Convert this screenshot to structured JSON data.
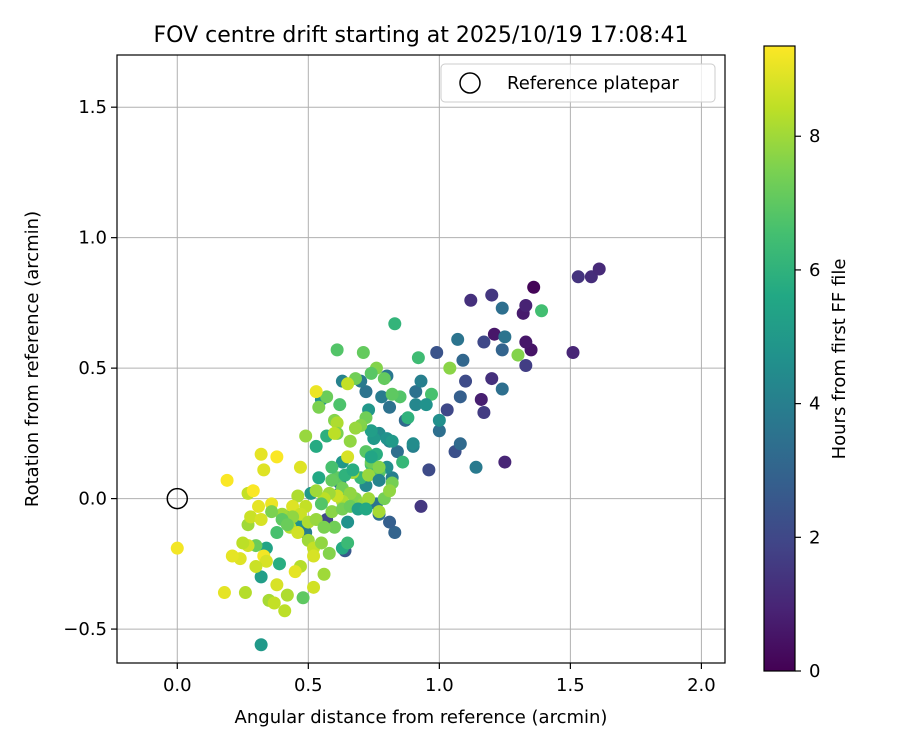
{
  "chart_data": {
    "type": "scatter",
    "title": "FOV centre drift starting at 2025/10/19 17:08:41",
    "xlabel": "Angular distance from reference (arcmin)",
    "ylabel": "Rotation from reference (arcmin)",
    "xlim": [
      -0.23,
      2.09
    ],
    "ylim": [
      -0.63,
      1.7
    ],
    "grid": true,
    "xticks": [
      {
        "value": 0.0,
        "label": "0.0"
      },
      {
        "value": 0.5,
        "label": "0.5"
      },
      {
        "value": 1.0,
        "label": "1.0"
      },
      {
        "value": 1.5,
        "label": "1.5"
      },
      {
        "value": 2.0,
        "label": "2.0"
      }
    ],
    "yticks": [
      {
        "value": -0.5,
        "label": "−0.5"
      },
      {
        "value": 0.0,
        "label": "0.0"
      },
      {
        "value": 0.5,
        "label": "0.5"
      },
      {
        "value": 1.0,
        "label": "1.0"
      },
      {
        "value": 1.5,
        "label": "1.5"
      }
    ],
    "legend": {
      "label": "Reference platepar",
      "location": "upper right"
    },
    "reference_point": {
      "x": 0.0,
      "y": 0.0
    },
    "colorbar": {
      "label": "Hours from first FF file",
      "min": 0,
      "max": 9.35,
      "colormap": "viridis",
      "ticks": [
        {
          "value": 0,
          "label": "0"
        },
        {
          "value": 2,
          "label": "2"
        },
        {
          "value": 4,
          "label": "4"
        },
        {
          "value": 6,
          "label": "6"
        },
        {
          "value": 8,
          "label": "8"
        }
      ]
    },
    "series": [
      {
        "name": "FOV centre drift",
        "columns": [
          "x",
          "y",
          "hours"
        ],
        "points": [
          [
            1.36,
            0.81,
            0.1
          ],
          [
            1.35,
            0.57,
            0.5
          ],
          [
            1.33,
            0.6,
            0.6
          ],
          [
            1.32,
            0.71,
            0.7
          ],
          [
            1.33,
            0.74,
            0.9
          ],
          [
            1.21,
            0.63,
            0.6
          ],
          [
            1.25,
            0.14,
            1.0
          ],
          [
            1.53,
            0.85,
            1.4
          ],
          [
            1.58,
            0.85,
            1.2
          ],
          [
            1.61,
            0.88,
            1.1
          ],
          [
            1.51,
            0.56,
            1.0
          ],
          [
            1.12,
            0.76,
            1.3
          ],
          [
            1.2,
            0.78,
            1.5
          ],
          [
            1.16,
            0.38,
            0.8
          ],
          [
            1.17,
            0.33,
            1.6
          ],
          [
            1.1,
            0.45,
            2.1
          ],
          [
            1.08,
            0.39,
            2.8
          ],
          [
            1.2,
            0.46,
            1.3
          ],
          [
            1.33,
            0.51,
            1.7
          ],
          [
            1.06,
            0.18,
            2.3
          ],
          [
            1.09,
            0.53,
            3.1
          ],
          [
            0.99,
            0.56,
            2.4
          ],
          [
            0.96,
            0.11,
            2.1
          ],
          [
            0.93,
            -0.03,
            1.5
          ],
          [
            1.03,
            0.34,
            2.0
          ],
          [
            1.07,
            0.61,
            3.6
          ],
          [
            1.14,
            0.12,
            3.8
          ],
          [
            1.17,
            0.6,
            2.0
          ],
          [
            1.24,
            0.73,
            3.4
          ],
          [
            1.24,
            0.57,
            3.0
          ],
          [
            1.25,
            0.62,
            3.6
          ],
          [
            1.24,
            0.42,
            3.4
          ],
          [
            1.08,
            0.21,
            3.2
          ],
          [
            1.0,
            0.26,
            3.4
          ],
          [
            0.9,
            0.2,
            4.0
          ],
          [
            0.91,
            0.36,
            4.3
          ],
          [
            0.87,
            0.3,
            3.2
          ],
          [
            0.91,
            0.41,
            3.5
          ],
          [
            0.93,
            0.45,
            4.0
          ],
          [
            0.8,
            0.47,
            3.7
          ],
          [
            0.78,
            0.39,
            3.9
          ],
          [
            0.81,
            0.35,
            3.5
          ],
          [
            0.81,
            0.22,
            4.1
          ],
          [
            0.84,
            0.18,
            3.4
          ],
          [
            0.83,
            -0.13,
            3.0
          ],
          [
            0.81,
            -0.09,
            2.8
          ],
          [
            0.82,
            0.08,
            4.0
          ],
          [
            0.8,
            0.12,
            4.6
          ],
          [
            0.77,
            0.25,
            4.5
          ],
          [
            0.75,
            0.23,
            5.0
          ],
          [
            0.72,
            0.41,
            3.6
          ],
          [
            0.7,
            0.45,
            3.8
          ],
          [
            0.63,
            0.45,
            4.1
          ],
          [
            0.73,
            0.34,
            4.9
          ],
          [
            0.74,
            0.26,
            5.2
          ],
          [
            0.77,
            -0.06,
            3.4
          ],
          [
            0.76,
            -0.02,
            3.6
          ],
          [
            0.68,
            -0.03,
            3.4
          ],
          [
            0.64,
            -0.2,
            2.6
          ],
          [
            0.65,
            -0.09,
            4.7
          ],
          [
            0.57,
            -0.08,
            2.0
          ],
          [
            0.62,
            0.06,
            3.8
          ],
          [
            0.62,
            0.02,
            4.3
          ],
          [
            0.72,
            0.05,
            4.4
          ],
          [
            0.63,
            0.14,
            4.9
          ],
          [
            0.55,
            0.38,
            4.7
          ],
          [
            0.57,
            0.24,
            5.9
          ],
          [
            0.53,
            0.2,
            5.7
          ],
          [
            0.54,
            0.08,
            5.6
          ],
          [
            0.51,
            0.02,
            5.0
          ],
          [
            0.46,
            -0.1,
            4.7
          ],
          [
            0.49,
            -0.13,
            3.9
          ],
          [
            0.32,
            -0.3,
            5.2
          ],
          [
            0.32,
            -0.56,
            5.0
          ],
          [
            0.39,
            -0.25,
            5.8
          ],
          [
            0.34,
            -0.19,
            5.4
          ],
          [
            0.3,
            -0.18,
            7.2
          ],
          [
            0.48,
            -0.38,
            7.0
          ],
          [
            0.38,
            -0.13,
            6.6
          ],
          [
            0.42,
            -0.07,
            6.4
          ],
          [
            0.63,
            -0.19,
            5.7
          ],
          [
            0.65,
            -0.17,
            6.3
          ],
          [
            0.58,
            -0.21,
            7.6
          ],
          [
            0.6,
            -0.11,
            7.3
          ],
          [
            0.68,
            0.0,
            7.6
          ],
          [
            0.7,
            0.08,
            6.2
          ],
          [
            0.74,
            0.13,
            6.5
          ],
          [
            0.77,
            0.1,
            6.9
          ],
          [
            0.82,
            0.06,
            7.4
          ],
          [
            0.86,
            0.14,
            6.2
          ],
          [
            0.88,
            0.31,
            6.0
          ],
          [
            0.85,
            0.39,
            6.8
          ],
          [
            0.82,
            0.4,
            7.0
          ],
          [
            0.83,
            0.67,
            6.1
          ],
          [
            0.92,
            0.54,
            6.4
          ],
          [
            0.97,
            0.4,
            6.6
          ],
          [
            1.04,
            0.5,
            7.7
          ],
          [
            1.3,
            0.55,
            7.6
          ],
          [
            1.39,
            0.72,
            6.5
          ],
          [
            0.79,
            0.46,
            7.1
          ],
          [
            0.76,
            0.5,
            7.6
          ],
          [
            0.74,
            0.48,
            6.9
          ],
          [
            0.71,
            0.56,
            7.1
          ],
          [
            0.61,
            0.57,
            6.8
          ],
          [
            0.68,
            0.46,
            7.3
          ],
          [
            0.62,
            0.36,
            6.7
          ],
          [
            0.6,
            0.3,
            7.6
          ],
          [
            0.57,
            0.39,
            7.2
          ],
          [
            0.54,
            0.35,
            7.5
          ],
          [
            0.65,
            0.44,
            8.5
          ],
          [
            0.72,
            0.31,
            7.3
          ],
          [
            0.7,
            0.28,
            7.6
          ],
          [
            0.68,
            0.27,
            7.9
          ],
          [
            0.61,
            0.29,
            8.2
          ],
          [
            0.61,
            0.25,
            7.5
          ],
          [
            0.66,
            0.22,
            7.8
          ],
          [
            0.72,
            0.18,
            6.9
          ],
          [
            0.74,
            0.14,
            7.2
          ],
          [
            0.77,
            0.12,
            7.6
          ],
          [
            0.73,
            0.09,
            7.9
          ],
          [
            0.67,
            0.1,
            8.1
          ],
          [
            0.61,
            0.08,
            7.0
          ],
          [
            0.63,
            0.04,
            7.3
          ],
          [
            0.66,
            0.02,
            7.8
          ],
          [
            0.63,
            -0.01,
            8.2
          ],
          [
            0.61,
            0.01,
            8.6
          ],
          [
            0.58,
            0.02,
            8.0
          ],
          [
            0.56,
            0.0,
            8.4
          ],
          [
            0.59,
            -0.05,
            7.7
          ],
          [
            0.63,
            -0.04,
            7.4
          ],
          [
            0.66,
            -0.03,
            7.2
          ],
          [
            0.71,
            -0.02,
            7.8
          ],
          [
            0.73,
            0.0,
            8.0
          ],
          [
            0.79,
            0.0,
            7.4
          ],
          [
            0.81,
            0.03,
            7.8
          ],
          [
            0.77,
            -0.05,
            8.1
          ],
          [
            0.49,
            -0.03,
            8.5
          ],
          [
            0.46,
            0.01,
            8.2
          ],
          [
            0.44,
            -0.03,
            8.9
          ],
          [
            0.47,
            -0.06,
            8.6
          ],
          [
            0.4,
            -0.06,
            8.0
          ],
          [
            0.43,
            -0.11,
            8.3
          ],
          [
            0.46,
            -0.13,
            8.7
          ],
          [
            0.5,
            -0.09,
            8.2
          ],
          [
            0.53,
            -0.08,
            7.9
          ],
          [
            0.5,
            -0.16,
            8.0
          ],
          [
            0.52,
            -0.19,
            8.5
          ],
          [
            0.55,
            -0.17,
            7.8
          ],
          [
            0.56,
            -0.11,
            7.5
          ],
          [
            0.52,
            -0.22,
            8.8
          ],
          [
            0.47,
            -0.26,
            8.3
          ],
          [
            0.56,
            -0.29,
            8.0
          ],
          [
            0.52,
            -0.34,
            8.7
          ],
          [
            0.45,
            -0.28,
            9.0
          ],
          [
            0.38,
            -0.33,
            8.8
          ],
          [
            0.35,
            -0.39,
            8.1
          ],
          [
            0.41,
            -0.43,
            8.4
          ],
          [
            0.42,
            -0.37,
            8.2
          ],
          [
            0.37,
            -0.4,
            8.5
          ],
          [
            0.33,
            -0.22,
            9.2
          ],
          [
            0.34,
            -0.24,
            8.8
          ],
          [
            0.3,
            -0.26,
            8.6
          ],
          [
            0.27,
            -0.18,
            8.7
          ],
          [
            0.25,
            -0.17,
            8.4
          ],
          [
            0.24,
            -0.23,
            8.9
          ],
          [
            0.21,
            -0.22,
            9.0
          ],
          [
            0.27,
            -0.1,
            8.0
          ],
          [
            0.28,
            -0.07,
            8.6
          ],
          [
            0.32,
            -0.08,
            8.8
          ],
          [
            0.36,
            -0.02,
            9.1
          ],
          [
            0.31,
            -0.03,
            9.0
          ],
          [
            0.27,
            0.02,
            8.5
          ],
          [
            0.29,
            0.03,
            9.3
          ],
          [
            0.19,
            0.07,
            9.3
          ],
          [
            0.0,
            -0.19,
            9.2
          ],
          [
            0.18,
            -0.36,
            9.0
          ],
          [
            0.26,
            -0.36,
            8.3
          ],
          [
            0.33,
            0.11,
            8.9
          ],
          [
            0.32,
            0.17,
            9.0
          ],
          [
            0.38,
            0.16,
            9.3
          ],
          [
            0.47,
            0.12,
            8.9
          ],
          [
            0.49,
            0.24,
            7.9
          ],
          [
            0.53,
            0.41,
            9.1
          ],
          [
            0.6,
            0.25,
            8.4
          ],
          [
            0.65,
            0.16,
            8.8
          ],
          [
            0.59,
            0.07,
            7.1
          ],
          [
            0.55,
            -0.02,
            6.8
          ],
          [
            0.59,
            0.12,
            6.6
          ],
          [
            0.53,
            0.03,
            8.0
          ],
          [
            0.44,
            -0.07,
            7.8
          ],
          [
            0.36,
            -0.05,
            7.5
          ],
          [
            0.4,
            -0.08,
            7.0
          ],
          [
            0.42,
            -0.1,
            7.2
          ],
          [
            0.64,
            0.09,
            6.0
          ],
          [
            0.67,
            0.11,
            5.8
          ],
          [
            0.69,
            -0.04,
            5.3
          ],
          [
            0.72,
            -0.04,
            5.6
          ],
          [
            0.76,
            0.17,
            5.8
          ],
          [
            0.74,
            0.16,
            5.5
          ],
          [
            0.8,
            0.23,
            4.7
          ],
          [
            0.82,
            0.22,
            5.0
          ],
          [
            0.9,
            0.21,
            4.5
          ],
          [
            0.95,
            0.36,
            4.7
          ],
          [
            1.0,
            0.3,
            4.6
          ],
          [
            0.77,
            0.07,
            4.2
          ]
        ]
      }
    ]
  }
}
